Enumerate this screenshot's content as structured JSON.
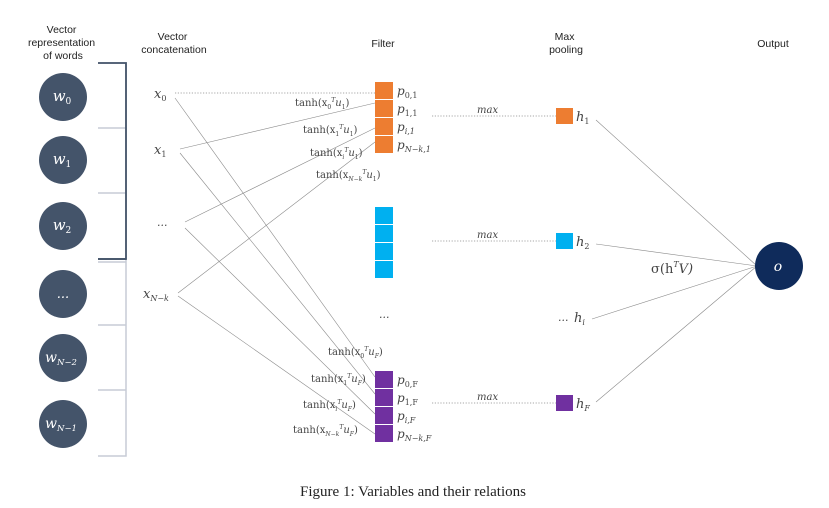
{
  "headers": {
    "words": [
      "Vector",
      "representation",
      "of words"
    ],
    "concat": [
      "Vector",
      "concatenation"
    ],
    "filter": "Filter",
    "pool": [
      "Max",
      "pooling"
    ],
    "output": "Output"
  },
  "words": [
    "w",
    "w",
    "w",
    "...",
    "w",
    "w"
  ],
  "word_subs": [
    "0",
    "1",
    "2",
    "",
    "N−2",
    "N−1"
  ],
  "x_vars": [
    {
      "base": "x",
      "sub": "0"
    },
    {
      "base": "x",
      "sub": "1"
    },
    {
      "base": "...",
      "sub": ""
    },
    {
      "base": "x",
      "sub": "N−k"
    }
  ],
  "tanh_top": [
    {
      "sub": "0",
      "u": "1"
    },
    {
      "sub": "1",
      "u": "1"
    },
    {
      "sub": "i",
      "u": "1"
    },
    {
      "sub": "N−k",
      "u": "1"
    }
  ],
  "tanh_bot": [
    {
      "sub": "0",
      "u": "F"
    },
    {
      "sub": "1",
      "u": "F"
    },
    {
      "sub": "i",
      "u": "F"
    },
    {
      "sub": "N−k",
      "u": "F"
    }
  ],
  "p_top": [
    {
      "sub": "0,1"
    },
    {
      "sub": "1,1"
    },
    {
      "sub": "i,1"
    },
    {
      "sub": "N−k,1"
    }
  ],
  "p_bot": [
    {
      "sub": "0,F"
    },
    {
      "sub": "1,F"
    },
    {
      "sub": "i,F"
    },
    {
      "sub": "N−k,F"
    }
  ],
  "max_label": "max",
  "ellipsis": "...",
  "h_labels": [
    {
      "base": "h",
      "sub": "1"
    },
    {
      "base": "h",
      "sub": "2"
    },
    {
      "base": "h",
      "sub": "i"
    },
    {
      "base": "h",
      "sub": "F"
    }
  ],
  "sigma_label": {
    "pre": "σ(h",
    "sup": "T",
    "post": "V)"
  },
  "output_node": "o",
  "caption": "Figure 1: Variables and their relations",
  "colors": {
    "word_node": "#44546a",
    "output_node": "#0f2b5b",
    "filter_orange": "#ed7d31",
    "filter_blue": "#00b0f0",
    "filter_purple": "#7030a0"
  }
}
